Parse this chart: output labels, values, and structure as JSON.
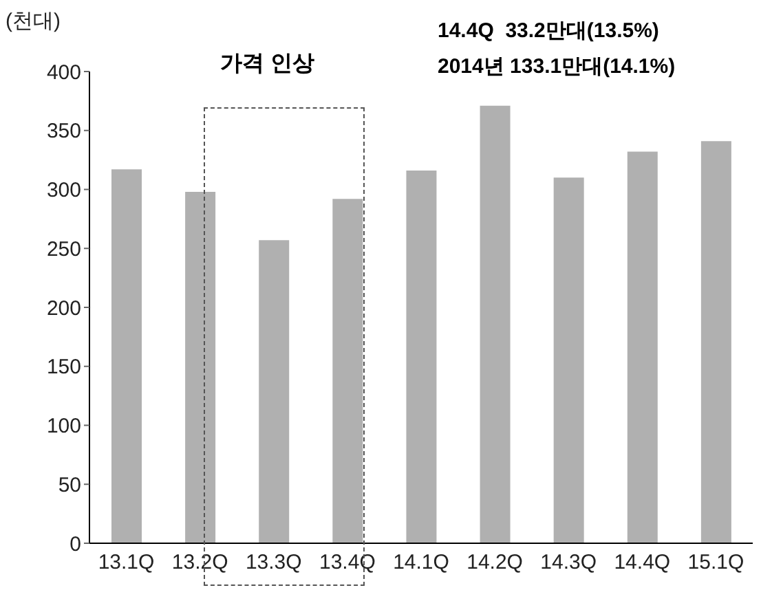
{
  "chart_data": {
    "type": "bar",
    "ylabel": "(천대)",
    "categories": [
      "13.1Q",
      "13.2Q",
      "13.3Q",
      "13.4Q",
      "14.1Q",
      "14.2Q",
      "14.3Q",
      "14.4Q",
      "15.1Q"
    ],
    "values": [
      317,
      298,
      257,
      292,
      316,
      371,
      310,
      332,
      341
    ],
    "color": "#b0b0b0",
    "ylim": [
      0,
      400
    ],
    "yticks": [
      0,
      50,
      100,
      150,
      200,
      250,
      300,
      350,
      400
    ],
    "grid": false,
    "annotations": [
      "가격 인상",
      "14.4Q  33.2만대(13.5%)",
      "2014년 133.1만대(14.1%)"
    ]
  }
}
